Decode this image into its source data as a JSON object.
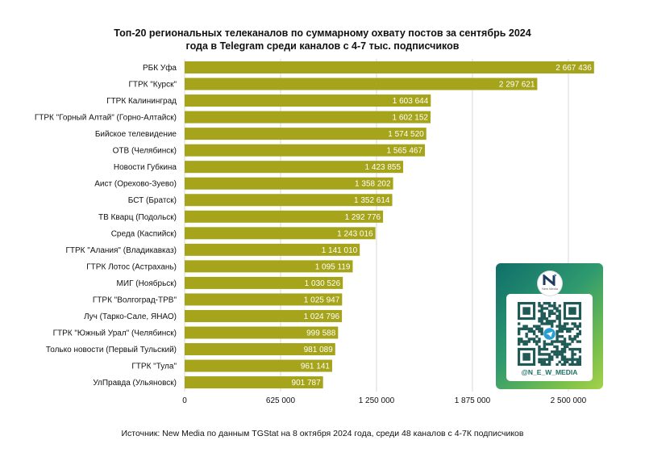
{
  "title": {
    "line1": "Топ-20 региональных телеканалов по суммарному охвату постов за сентябрь 2024",
    "line2": "года в Telegram среди каналов с 4-7 тыс. подписчиков"
  },
  "source": "Источник: New Media по данным TGStat на 8 октября 2024 года, среди 48 каналов с 4-7К подписчиков",
  "qr_card": {
    "logo_caption": "New Media",
    "handle": "@N_E_W_MEDIA"
  },
  "colors": {
    "bar": "#a5a41a",
    "gridline": "#d9d9d9",
    "value_text": "#ffffff"
  },
  "chart_data": {
    "type": "bar",
    "orientation": "horizontal",
    "categories": [
      "РБК Уфа",
      "ГТРК \"Курск\"",
      "ГТРК Калининград",
      "ГТРК \"Горный Алтай\" (Горно-Алтайск)",
      "Бийское телевидение",
      "ОТВ (Челябинск)",
      "Новости Губкина",
      "Аист (Орехово-Зуево)",
      "БСТ (Братск)",
      "ТВ Кварц (Подольск)",
      "Среда (Каспийск)",
      "ГТРК \"Алания\" (Владикавказ)",
      "ГТРК Лотос (Астрахань)",
      "МИГ (Ноябрьск)",
      "ГТРК \"Волгоград-ТРВ\"",
      "Луч (Тарко-Сале, ЯНАО)",
      "ГТРК \"Южный Урал\" (Челябинск)",
      "Только новости (Первый Тульский)",
      "ГТРК \"Тула\"",
      "УлПравда (Ульяновск)"
    ],
    "values": [
      2667436,
      2297621,
      1603644,
      1602152,
      1574520,
      1565467,
      1423855,
      1358202,
      1352614,
      1292776,
      1243016,
      1141010,
      1095119,
      1030526,
      1025947,
      1024796,
      999588,
      981089,
      961141,
      901787
    ],
    "value_labels": [
      "2 667 436",
      "2 297 621",
      "1 603 644",
      "1 602 152",
      "1 574 520",
      "1 565 467",
      "1 423 855",
      "1 358 202",
      "1 352 614",
      "1 292 776",
      "1 243 016",
      "1 141 010",
      "1 095 119",
      "1 030 526",
      "1 025 947",
      "1 024 796",
      "999 588",
      "981 089",
      "961 141",
      "901 787"
    ],
    "xlim": [
      0,
      2700000
    ],
    "xticks": [
      0,
      625000,
      1250000,
      1875000,
      2500000
    ],
    "xtick_labels": [
      "0",
      "625 000",
      "1 250 000",
      "1 875 000",
      "2 500 000"
    ],
    "grid": true,
    "legend": "none"
  }
}
